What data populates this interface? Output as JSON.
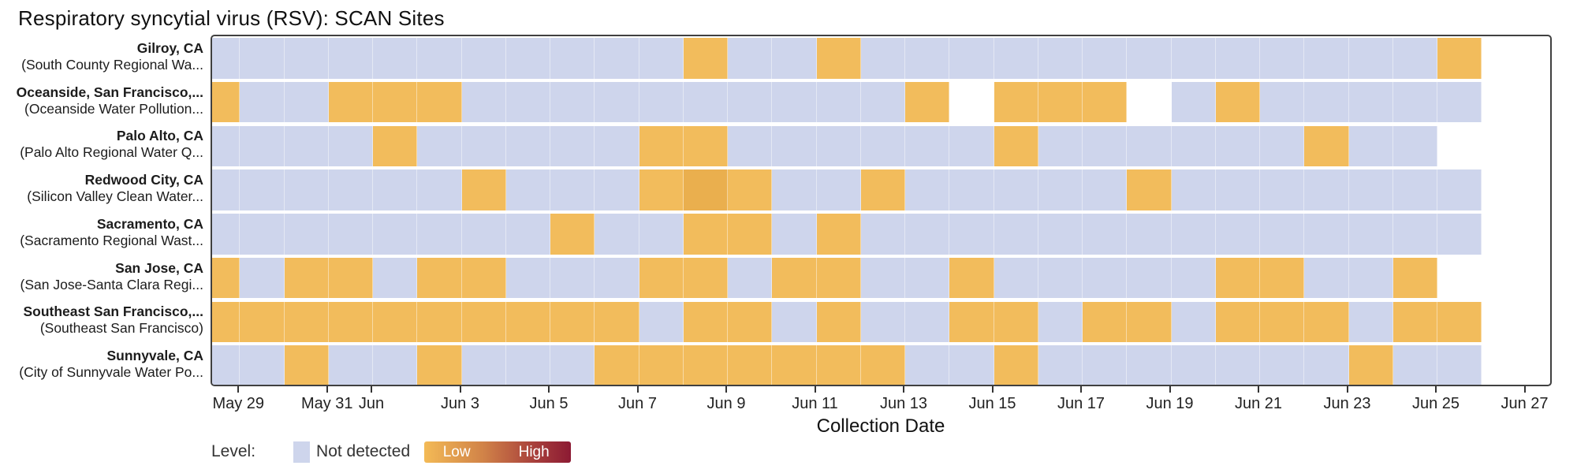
{
  "title": "Respiratory syncytial virus (RSV): SCAN Sites",
  "chart_data": {
    "type": "heatmap",
    "title": "Respiratory syncytial virus (RSV): SCAN Sites",
    "xlabel": "Collection Date",
    "x_dates": [
      "May 28",
      "May 29",
      "May 30",
      "May 31",
      "Jun 1",
      "Jun 2",
      "Jun 3",
      "Jun 4",
      "Jun 5",
      "Jun 6",
      "Jun 7",
      "Jun 8",
      "Jun 9",
      "Jun 10",
      "Jun 11",
      "Jun 12",
      "Jun 13",
      "Jun 14",
      "Jun 15",
      "Jun 16",
      "Jun 17",
      "Jun 18",
      "Jun 19",
      "Jun 20",
      "Jun 21",
      "Jun 22",
      "Jun 23",
      "Jun 24",
      "Jun 25"
    ],
    "x_ticks": [
      {
        "label": "May 29",
        "day": 1
      },
      {
        "label": "May 31",
        "day": 3
      },
      {
        "label": "Jun",
        "day": 4
      },
      {
        "label": "Jun 3",
        "day": 6
      },
      {
        "label": "Jun 5",
        "day": 8
      },
      {
        "label": "Jun 7",
        "day": 10
      },
      {
        "label": "Jun 9",
        "day": 12
      },
      {
        "label": "Jun 11",
        "day": 14
      },
      {
        "label": "Jun 13",
        "day": 16
      },
      {
        "label": "Jun 15",
        "day": 18
      },
      {
        "label": "Jun 17",
        "day": 20
      },
      {
        "label": "Jun 19",
        "day": 22
      },
      {
        "label": "Jun 21",
        "day": 24
      },
      {
        "label": "Jun 23",
        "day": 26
      },
      {
        "label": "Jun 25",
        "day": 28
      },
      {
        "label": "Jun 27",
        "day": 30
      }
    ],
    "value_codes": {
      "nd": "Not detected",
      "low": "Low",
      "low2": "Low (slightly higher)",
      "null": "No data"
    },
    "colors": {
      "nd": "#ced5ec",
      "low": "#f2bc5c",
      "low2": "#eaaf4e",
      "panel_border": "#404040",
      "gradient_start": "#f3ba56",
      "gradient_end": "#8c1a33"
    },
    "legend": {
      "label": "Level:",
      "not_detected": "Not detected",
      "low": "Low",
      "high": "High"
    },
    "layout": {
      "legend_position": "bottom-left",
      "grid": false,
      "x_range": [
        "May 28",
        "Jun 27"
      ]
    },
    "sites": [
      {
        "name": "Gilroy, CA",
        "facility": "(South County Regional Wa...",
        "values": [
          "nd",
          "nd",
          "nd",
          "nd",
          "nd",
          "nd",
          "nd",
          "nd",
          "nd",
          "nd",
          "nd",
          "low",
          "nd",
          "nd",
          "low",
          "nd",
          "nd",
          "nd",
          "nd",
          "nd",
          "nd",
          "nd",
          "nd",
          "nd",
          "nd",
          "nd",
          "nd",
          "nd",
          "low"
        ]
      },
      {
        "name": "Oceanside, San Francisco,...",
        "facility": "(Oceanside Water Pollution...",
        "values": [
          "low",
          "nd",
          "nd",
          "low",
          "low",
          "low",
          "nd",
          "nd",
          "nd",
          "nd",
          "nd",
          "nd",
          "nd",
          "nd",
          "nd",
          "nd",
          "low",
          null,
          "low",
          "low",
          "low",
          null,
          "nd",
          "low",
          "nd",
          "nd",
          "nd",
          "nd",
          "nd"
        ]
      },
      {
        "name": "Palo Alto, CA",
        "facility": "(Palo Alto Regional Water Q...",
        "values": [
          "nd",
          "nd",
          "nd",
          "nd",
          "low",
          "nd",
          "nd",
          "nd",
          "nd",
          "nd",
          "low",
          "low",
          "nd",
          "nd",
          "nd",
          "nd",
          "nd",
          "nd",
          "low",
          "nd",
          "nd",
          "nd",
          "nd",
          "nd",
          "nd",
          "low",
          "nd",
          "nd",
          null
        ]
      },
      {
        "name": "Redwood City, CA",
        "facility": "(Silicon Valley Clean Water...",
        "values": [
          "nd",
          "nd",
          "nd",
          "nd",
          "nd",
          "nd",
          "low",
          "nd",
          "nd",
          "nd",
          "low",
          "low2",
          "low",
          "nd",
          "nd",
          "low",
          "nd",
          "nd",
          "nd",
          "nd",
          "nd",
          "low",
          "nd",
          "nd",
          "nd",
          "nd",
          "nd",
          "nd",
          "nd"
        ]
      },
      {
        "name": "Sacramento, CA",
        "facility": "(Sacramento Regional Wast...",
        "values": [
          "nd",
          "nd",
          "nd",
          "nd",
          "nd",
          "nd",
          "nd",
          "nd",
          "low",
          "nd",
          "nd",
          "low",
          "low",
          "nd",
          "low",
          "nd",
          "nd",
          "nd",
          "nd",
          "nd",
          "nd",
          "nd",
          "nd",
          "nd",
          "nd",
          "nd",
          "nd",
          "nd",
          "nd"
        ]
      },
      {
        "name": "San Jose, CA",
        "facility": "(San Jose-Santa Clara Regi...",
        "values": [
          "low",
          "nd",
          "low",
          "low",
          "nd",
          "low",
          "low",
          "nd",
          "nd",
          "nd",
          "low",
          "low",
          "nd",
          "low",
          "low",
          "nd",
          "nd",
          "low",
          "nd",
          "nd",
          "nd",
          "nd",
          "nd",
          "low",
          "low",
          "nd",
          "nd",
          "low",
          null
        ]
      },
      {
        "name": "Southeast San Francisco,...",
        "facility": "(Southeast San Francisco)",
        "values": [
          "low",
          "low",
          "low",
          "low",
          "low",
          "low",
          "low",
          "low",
          "low",
          "low",
          "nd",
          "low",
          "low",
          "nd",
          "low",
          "nd",
          "nd",
          "low",
          "low",
          "nd",
          "low",
          "low",
          "nd",
          "low",
          "low",
          "low",
          "nd",
          "low",
          "low"
        ]
      },
      {
        "name": "Sunnyvale, CA",
        "facility": "(City of Sunnyvale Water Po...",
        "values": [
          "nd",
          "nd",
          "low",
          "nd",
          "nd",
          "low",
          "nd",
          "nd",
          "nd",
          "low",
          "low",
          "low",
          "low",
          "low",
          "low",
          "low",
          "nd",
          "nd",
          "low",
          "nd",
          "nd",
          "nd",
          "nd",
          "nd",
          "nd",
          "nd",
          "low",
          "nd",
          "nd"
        ]
      }
    ]
  }
}
